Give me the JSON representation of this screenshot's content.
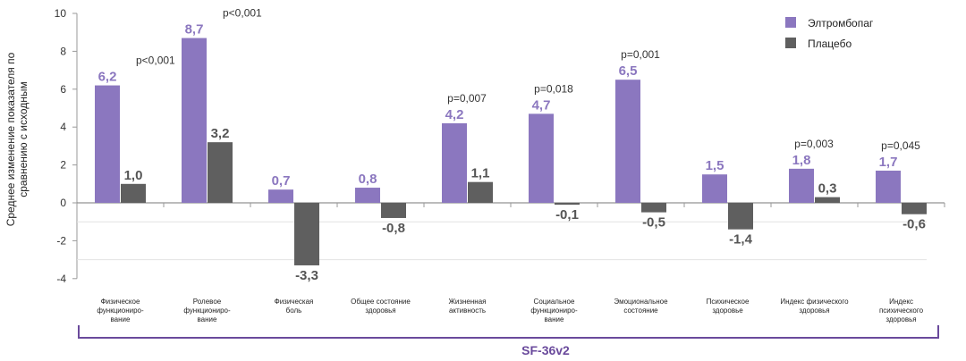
{
  "colors": {
    "series1": "#8b77bf",
    "series2": "#5f5f5f",
    "bracket": "#6a4a9c",
    "axis": "#9a9a9a"
  },
  "chart_data": {
    "type": "bar",
    "ylabel": "Среднее изменение показателя по сравнению с исходным",
    "ylim": [
      -4,
      10
    ],
    "yticks": [
      -4,
      -2,
      0,
      2,
      4,
      6,
      8,
      10
    ],
    "grid": false,
    "legend_position": "top-right",
    "categories": [
      [
        "Физическое",
        "функциониро-",
        "вание"
      ],
      [
        "Ролевое",
        "функциониро-",
        "вание"
      ],
      [
        "Физическая",
        "боль"
      ],
      [
        "Общее  состояние",
        "здоровья"
      ],
      [
        "Жизненная",
        "активность"
      ],
      [
        "Социальное",
        "функциониро-",
        "вание"
      ],
      [
        "Эмоциональное",
        "состояние"
      ],
      [
        "Психическое",
        "здоровье"
      ],
      [
        "Индекс  физического",
        "здоровья"
      ],
      [
        "Индекс",
        "психического",
        "здоровья"
      ]
    ],
    "series": [
      {
        "name": "Элтромбопаг",
        "values": [
          6.2,
          8.7,
          0.7,
          0.8,
          4.2,
          4.7,
          6.5,
          1.5,
          1.8,
          1.7
        ],
        "labels": [
          "6,2",
          "8,7",
          "0,7",
          "0,8",
          "4,2",
          "4,7",
          "6,5",
          "1,5",
          "1,8",
          "1,7"
        ]
      },
      {
        "name": "Плацебо",
        "values": [
          1.0,
          3.2,
          -3.3,
          -0.8,
          1.1,
          -0.1,
          -0.5,
          -1.4,
          0.3,
          -0.6
        ],
        "labels": [
          "1,0",
          "3,2",
          "-3,3",
          "-0,8",
          "1,1",
          "-0,1",
          "-0,5",
          "-1,4",
          "0,3",
          "-0,6"
        ]
      }
    ],
    "p_values": [
      "p<0,001",
      "p<0,001",
      "",
      "",
      "p=0,007",
      "p=0,018",
      "p=0,001",
      "",
      "p=0,003",
      "p=0,045"
    ],
    "group_label": "SF-36v2"
  }
}
